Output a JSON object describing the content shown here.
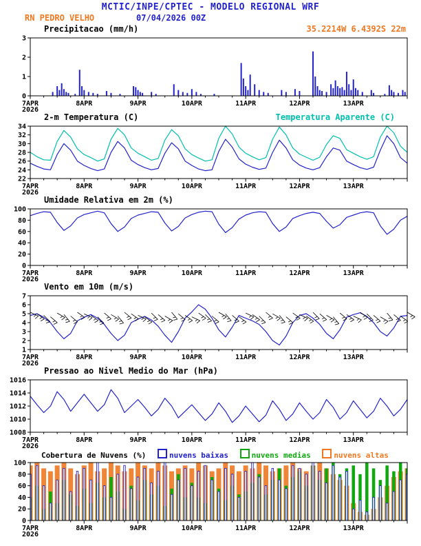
{
  "header": {
    "title": "MCTIC/INPE/CPTEC - MODELO REGIONAL WRF",
    "station": "RN PEDRO VELHO",
    "datetime": "07/04/2026 00Z",
    "coords": "35.2214W 6.4392S 22m"
  },
  "colors": {
    "blue": "#2222cc",
    "cyan": "#00bfae",
    "orange": "#f07820",
    "green": "#0fa80f",
    "black": "#000000"
  },
  "x_axis": {
    "hours": 168,
    "major_tick_hours": 24,
    "minor_tick_hours": 6,
    "labels": [
      "7APR",
      "8APR",
      "9APR",
      "10APR",
      "11APR",
      "12APR",
      "13APR"
    ],
    "year_label": "2026"
  },
  "chart_data": [
    {
      "id": "precipitation",
      "type": "bar",
      "title": "Precipitacao (mm/h)",
      "ylim": [
        0,
        3
      ],
      "yticks": [
        0,
        1,
        2,
        3
      ],
      "color": "#2222cc",
      "bars": [
        [
          10,
          0.2
        ],
        [
          12,
          0.5
        ],
        [
          13,
          0.3
        ],
        [
          14,
          0.65
        ],
        [
          15,
          0.35
        ],
        [
          16,
          0.2
        ],
        [
          17,
          0.15
        ],
        [
          20,
          0.1
        ],
        [
          22,
          1.35
        ],
        [
          23,
          0.5
        ],
        [
          24,
          0.3
        ],
        [
          26,
          0.2
        ],
        [
          28,
          0.15
        ],
        [
          30,
          0.1
        ],
        [
          34,
          0.25
        ],
        [
          36,
          0.15
        ],
        [
          40,
          0.1
        ],
        [
          46,
          0.5
        ],
        [
          47,
          0.45
        ],
        [
          48,
          0.3
        ],
        [
          49,
          0.2
        ],
        [
          50,
          0.15
        ],
        [
          54,
          0.2
        ],
        [
          56,
          0.1
        ],
        [
          64,
          0.6
        ],
        [
          66,
          0.3
        ],
        [
          68,
          0.2
        ],
        [
          70,
          0.15
        ],
        [
          72,
          0.35
        ],
        [
          74,
          0.2
        ],
        [
          76,
          0.1
        ],
        [
          82,
          0.1
        ],
        [
          94,
          1.7
        ],
        [
          95,
          0.9
        ],
        [
          96,
          0.5
        ],
        [
          97,
          0.3
        ],
        [
          98,
          1.1
        ],
        [
          100,
          0.6
        ],
        [
          102,
          0.3
        ],
        [
          104,
          0.2
        ],
        [
          106,
          0.15
        ],
        [
          112,
          0.3
        ],
        [
          114,
          0.2
        ],
        [
          118,
          0.35
        ],
        [
          120,
          0.25
        ],
        [
          126,
          2.3
        ],
        [
          127,
          1.0
        ],
        [
          128,
          0.5
        ],
        [
          129,
          0.3
        ],
        [
          130,
          0.25
        ],
        [
          132,
          0.2
        ],
        [
          134,
          0.6
        ],
        [
          135,
          0.4
        ],
        [
          136,
          0.8
        ],
        [
          137,
          0.5
        ],
        [
          138,
          0.4
        ],
        [
          139,
          0.45
        ],
        [
          140,
          0.3
        ],
        [
          141,
          1.25
        ],
        [
          142,
          0.6
        ],
        [
          143,
          0.3
        ],
        [
          144,
          0.85
        ],
        [
          145,
          0.4
        ],
        [
          146,
          0.3
        ],
        [
          148,
          0.2
        ],
        [
          152,
          0.3
        ],
        [
          153,
          0.15
        ],
        [
          158,
          0.1
        ],
        [
          160,
          0.55
        ],
        [
          161,
          0.3
        ],
        [
          162,
          0.2
        ],
        [
          164,
          0.15
        ],
        [
          166,
          0.3
        ],
        [
          167,
          0.2
        ]
      ]
    },
    {
      "id": "temperature",
      "type": "line",
      "title": "2-m Temperatura (C)",
      "subtitle": "Temperatura Aparente (C)",
      "ylim": [
        22,
        34
      ],
      "yticks": [
        22,
        24,
        26,
        28,
        30,
        32,
        34
      ],
      "step_hours": 3,
      "series": [
        {
          "name": "2-m Temperatura (C)",
          "color": "#2222cc",
          "values": [
            25.5,
            24.8,
            24.2,
            24.0,
            27.5,
            30.0,
            28.5,
            26.0,
            25.0,
            24.3,
            23.8,
            24.2,
            28.0,
            30.5,
            29.0,
            26.2,
            25.2,
            24.5,
            24.0,
            24.3,
            27.8,
            30.2,
            28.8,
            26.0,
            25.0,
            24.2,
            23.8,
            24.0,
            28.2,
            31.0,
            29.2,
            26.5,
            25.3,
            24.6,
            24.1,
            24.4,
            28.0,
            30.8,
            29.0,
            26.3,
            25.1,
            24.4,
            24.0,
            24.5,
            27.0,
            29.0,
            28.5,
            26.0,
            25.2,
            24.5,
            24.1,
            24.6,
            28.5,
            31.8,
            30.0,
            26.8,
            25.5
          ]
        },
        {
          "name": "Temperatura Aparente (C)",
          "color": "#00bfae",
          "values": [
            28.0,
            27.0,
            26.3,
            26.2,
            30.5,
            33.0,
            31.5,
            28.8,
            27.5,
            26.8,
            26.0,
            26.5,
            31.0,
            33.5,
            32.0,
            29.0,
            27.8,
            27.0,
            26.2,
            26.6,
            30.8,
            33.2,
            31.8,
            28.8,
            27.5,
            26.7,
            26.0,
            26.3,
            31.2,
            34.0,
            32.2,
            29.2,
            27.8,
            27.0,
            26.3,
            26.8,
            31.0,
            33.8,
            32.0,
            29.0,
            27.6,
            26.9,
            26.2,
            26.9,
            29.8,
            31.8,
            31.2,
            28.6,
            27.8,
            27.0,
            26.4,
            27.0,
            31.5,
            34.2,
            32.5,
            29.4,
            28.0
          ]
        }
      ]
    },
    {
      "id": "relative-humidity",
      "type": "line",
      "title": "Umidade Relativa em 2m (%)",
      "ylim": [
        0,
        100
      ],
      "yticks": [
        0,
        20,
        40,
        60,
        80,
        100
      ],
      "step_hours": 3,
      "series": [
        {
          "name": "Umidade Relativa em 2m (%)",
          "color": "#2222cc",
          "values": [
            88,
            92,
            95,
            94,
            76,
            62,
            70,
            84,
            90,
            93,
            96,
            93,
            74,
            60,
            68,
            83,
            89,
            92,
            95,
            94,
            75,
            61,
            69,
            84,
            90,
            94,
            96,
            95,
            73,
            58,
            67,
            82,
            89,
            93,
            95,
            94,
            74,
            60,
            68,
            83,
            88,
            92,
            94,
            92,
            78,
            66,
            72,
            85,
            89,
            93,
            95,
            93,
            70,
            55,
            64,
            80,
            87
          ]
        }
      ]
    },
    {
      "id": "wind-10m",
      "type": "line+barbs",
      "title": "Vento em 10m (m/s)",
      "ylim": [
        1,
        7
      ],
      "yticks": [
        1,
        2,
        3,
        4,
        5,
        6,
        7
      ],
      "step_hours": 3,
      "series": [
        {
          "name": "Vento em 10m (m/s)",
          "color": "#2222cc",
          "values": [
            4.8,
            5.0,
            4.6,
            4.0,
            3.0,
            2.2,
            2.8,
            4.2,
            4.6,
            4.9,
            4.5,
            3.8,
            2.8,
            2.0,
            2.6,
            4.0,
            4.4,
            4.7,
            4.3,
            3.6,
            2.6,
            1.8,
            3.0,
            4.5,
            5.2,
            6.0,
            5.5,
            4.5,
            3.2,
            2.4,
            3.5,
            4.8,
            4.5,
            4.2,
            3.8,
            3.0,
            2.0,
            1.5,
            2.5,
            4.0,
            4.8,
            5.0,
            4.5,
            3.8,
            2.8,
            2.2,
            3.2,
            4.6,
            4.9,
            5.1,
            4.7,
            4.0,
            3.0,
            2.5,
            3.4,
            4.7,
            4.8
          ]
        }
      ],
      "barbs": {
        "y": 4.9,
        "dirs": [
          115,
          125,
          135,
          130,
          120,
          140,
          130,
          125,
          115,
          125,
          135,
          130,
          120,
          140,
          130,
          125,
          115,
          125,
          135,
          130,
          120,
          140,
          130,
          125,
          115,
          125,
          135,
          130,
          120,
          140,
          130,
          125,
          115,
          125,
          135,
          130,
          120,
          140,
          130,
          125,
          115,
          125,
          135,
          130,
          120,
          140,
          130,
          125,
          115,
          125,
          135,
          130,
          120,
          140,
          130,
          125,
          120
        ]
      }
    },
    {
      "id": "mslp",
      "type": "line",
      "title": "Pressao ao Nivel Medio do Mar (hPa)",
      "ylim": [
        1008,
        1016
      ],
      "yticks": [
        1008,
        1010,
        1012,
        1014,
        1016
      ],
      "step_hours": 3,
      "series": [
        {
          "name": "Pressao ao Nivel Medio do Mar (hPa)",
          "color": "#2222cc",
          "values": [
            1013.5,
            1012.2,
            1011.0,
            1012.0,
            1014.2,
            1013.0,
            1011.2,
            1012.5,
            1013.8,
            1012.5,
            1011.2,
            1012.2,
            1014.5,
            1013.2,
            1011.0,
            1012.0,
            1013.0,
            1011.8,
            1010.5,
            1011.5,
            1013.2,
            1012.0,
            1010.2,
            1011.2,
            1012.2,
            1011.0,
            1009.8,
            1010.8,
            1012.5,
            1011.2,
            1009.5,
            1010.5,
            1012.0,
            1010.8,
            1009.6,
            1010.6,
            1012.8,
            1011.5,
            1009.8,
            1010.8,
            1012.5,
            1011.2,
            1010.0,
            1011.0,
            1013.0,
            1011.8,
            1010.0,
            1011.0,
            1012.8,
            1011.5,
            1010.2,
            1011.2,
            1013.2,
            1012.0,
            1010.5,
            1011.5,
            1013.0
          ]
        }
      ]
    },
    {
      "id": "cloud-cover",
      "type": "cloudbars",
      "title": "Cobertura de Nuvens (%)",
      "ylim": [
        0,
        100
      ],
      "yticks": [
        0,
        20,
        40,
        60,
        80,
        100
      ],
      "step_hours": 3,
      "legend": [
        {
          "label": "nuvens baixas",
          "color": "#2222cc"
        },
        {
          "label": "nuvens medias",
          "color": "#0fa80f"
        },
        {
          "label": "nuvens altas",
          "color": "#f07820"
        }
      ],
      "series": [
        {
          "name": "nuvens altas",
          "color": "#ef8536",
          "values": [
            95,
            100,
            90,
            85,
            95,
            100,
            90,
            80,
            95,
            100,
            85,
            90,
            100,
            95,
            85,
            90,
            100,
            95,
            90,
            100,
            95,
            85,
            90,
            95,
            90,
            100,
            95,
            85,
            90,
            100,
            95,
            85,
            95,
            90,
            100,
            95,
            85,
            90,
            95,
            100,
            90,
            85,
            95,
            100,
            90,
            80,
            70,
            60,
            30,
            15,
            10,
            20,
            40,
            60,
            75,
            85,
            90
          ]
        },
        {
          "name": "nuvens medias",
          "color": "#0fa80f",
          "values": [
            40,
            60,
            20,
            50,
            30,
            70,
            45,
            25,
            55,
            30,
            65,
            40,
            75,
            50,
            20,
            60,
            35,
            70,
            45,
            60,
            25,
            55,
            80,
            40,
            65,
            40,
            30,
            75,
            55,
            35,
            60,
            45,
            50,
            65,
            80,
            45,
            70,
            90,
            60,
            75,
            85,
            60,
            95,
            70,
            90,
            100,
            80,
            90,
            95,
            80,
            100,
            90,
            70,
            95,
            85,
            100,
            90
          ]
        },
        {
          "name": "nuvens baixas",
          "color": "#2222cc",
          "values": [
            80,
            95,
            60,
            30,
            70,
            90,
            50,
            85,
            90,
            70,
            100,
            60,
            40,
            80,
            95,
            55,
            75,
            90,
            65,
            85,
            100,
            45,
            70,
            90,
            60,
            85,
            95,
            70,
            50,
            90,
            80,
            40,
            85,
            100,
            75,
            60,
            90,
            70,
            55,
            95,
            90,
            80,
            100,
            85,
            65,
            95,
            75,
            85,
            20,
            35,
            15,
            40,
            60,
            30,
            50,
            70,
            80
          ]
        }
      ]
    }
  ]
}
